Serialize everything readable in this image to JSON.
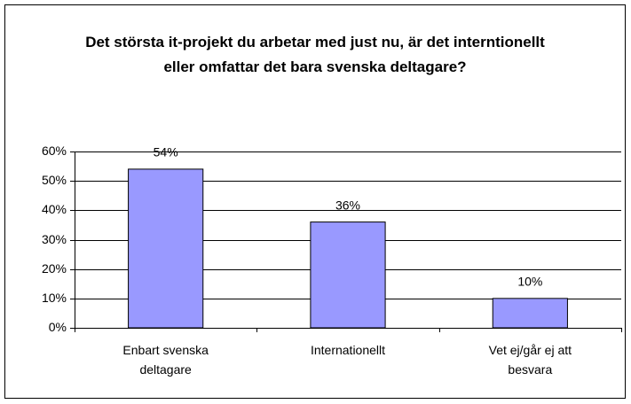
{
  "chart_data": {
    "type": "bar",
    "title": "Det största it-projekt du arbetar med just nu, är det interntionellt eller omfattar det bara svenska deltagare?",
    "categories": [
      "Enbart svenska deltagare",
      "Internationellt",
      "Vet ej/går ej att besvara"
    ],
    "values": [
      54,
      36,
      10
    ],
    "value_labels": [
      "54%",
      "36%",
      "10%"
    ],
    "color": "#9999ff",
    "ylim": [
      0,
      60
    ],
    "yticks": [
      {
        "value": 0,
        "label": "0%"
      },
      {
        "value": 10,
        "label": "10%"
      },
      {
        "value": 20,
        "label": "20%"
      },
      {
        "value": 30,
        "label": "30%"
      },
      {
        "value": 40,
        "label": "40%"
      },
      {
        "value": 50,
        "label": "50%"
      },
      {
        "value": 60,
        "label": "60%"
      }
    ],
    "grid": true
  }
}
